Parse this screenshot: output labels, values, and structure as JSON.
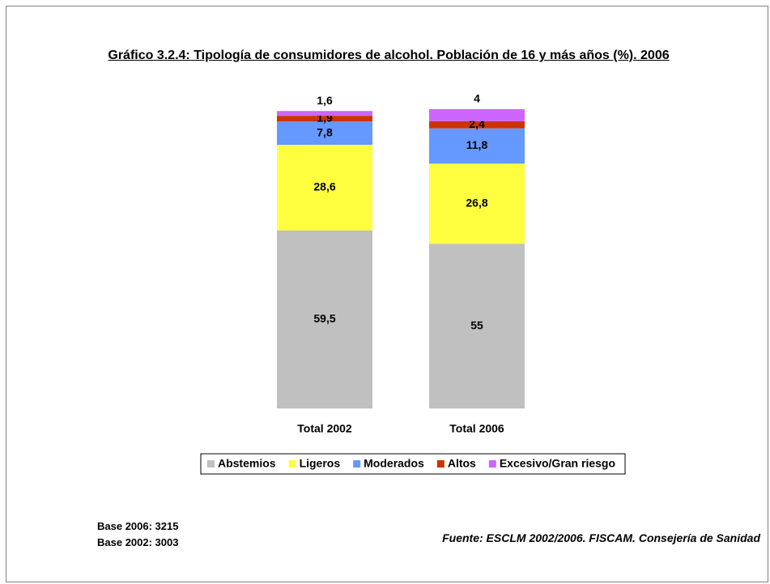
{
  "chart_data": {
    "type": "stacked_bar",
    "title": "Gráfico 3.2.4: Tipología de consumidores de alcohol. Población de 16 y más años (%). 2006",
    "categories": [
      "Total 2002",
      "Total 2006"
    ],
    "series": [
      {
        "name": "Abstemios",
        "color": "#c0c0c0",
        "values": [
          59.5,
          55
        ],
        "value_labels": [
          "59,5",
          "55"
        ]
      },
      {
        "name": "Ligeros",
        "color": "#ffff40",
        "values": [
          28.6,
          26.8
        ],
        "value_labels": [
          "28,6",
          "26,8"
        ]
      },
      {
        "name": "Moderados",
        "color": "#6699ff",
        "values": [
          7.8,
          11.8
        ],
        "value_labels": [
          "7,8",
          "11,8"
        ]
      },
      {
        "name": "Altos",
        "color": "#cc3300",
        "values": [
          1.9,
          2.4
        ],
        "value_labels": [
          "1,9",
          "2,4"
        ]
      },
      {
        "name": "Excesivo/Gran riesgo",
        "color": "#cc66ff",
        "values": [
          1.6,
          4
        ],
        "value_labels": [
          "1,6",
          "4"
        ]
      }
    ],
    "notes": [
      "Base 2006: 3215",
      "Base 2002: 3003"
    ],
    "source": "Fuente: ESCLM 2002/2006. FISCAM. Consejería de Sanidad"
  }
}
